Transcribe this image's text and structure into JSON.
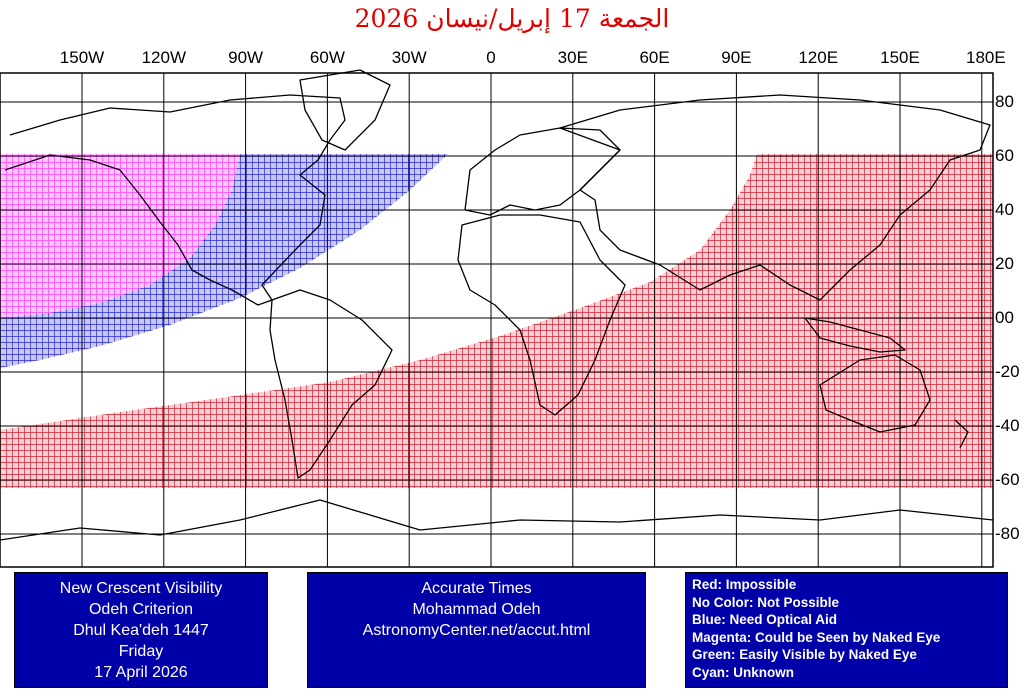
{
  "title": "الجمعة 17 إبريل/نيسان 2026",
  "longitude_labels": [
    "150W",
    "120W",
    "90W",
    "60W",
    "30W",
    "0",
    "30E",
    "60E",
    "90E",
    "120E",
    "150E",
    "180E"
  ],
  "latitude_labels": [
    "80",
    "60",
    "40",
    "20",
    "00",
    "-20",
    "-40",
    "-60",
    "-80"
  ],
  "visibility_zones": {
    "red": {
      "color": "#d02030",
      "meaning": "Impossible"
    },
    "blue": {
      "color": "#2a2ad0",
      "meaning": "Need Optical Aid"
    },
    "magenta": {
      "color": "#ff40ff",
      "meaning": "Could be Seen by Naked Eye"
    }
  },
  "info_box_left": {
    "lines": [
      "New Crescent Visibility",
      "Odeh Criterion",
      "Dhul Kea'deh 1447",
      "Friday",
      "17 April 2026"
    ]
  },
  "info_box_center": {
    "lines": [
      "Accurate Times",
      "Mohammad Odeh",
      "AstronomyCenter.net/accut.html"
    ]
  },
  "legend": {
    "lines": [
      "Red: Impossible",
      "No Color: Not Possible",
      "Blue: Need Optical Aid",
      "Magenta: Could be Seen by Naked Eye",
      "Green: Easily Visible by Naked Eye",
      "Cyan: Unknown"
    ]
  }
}
